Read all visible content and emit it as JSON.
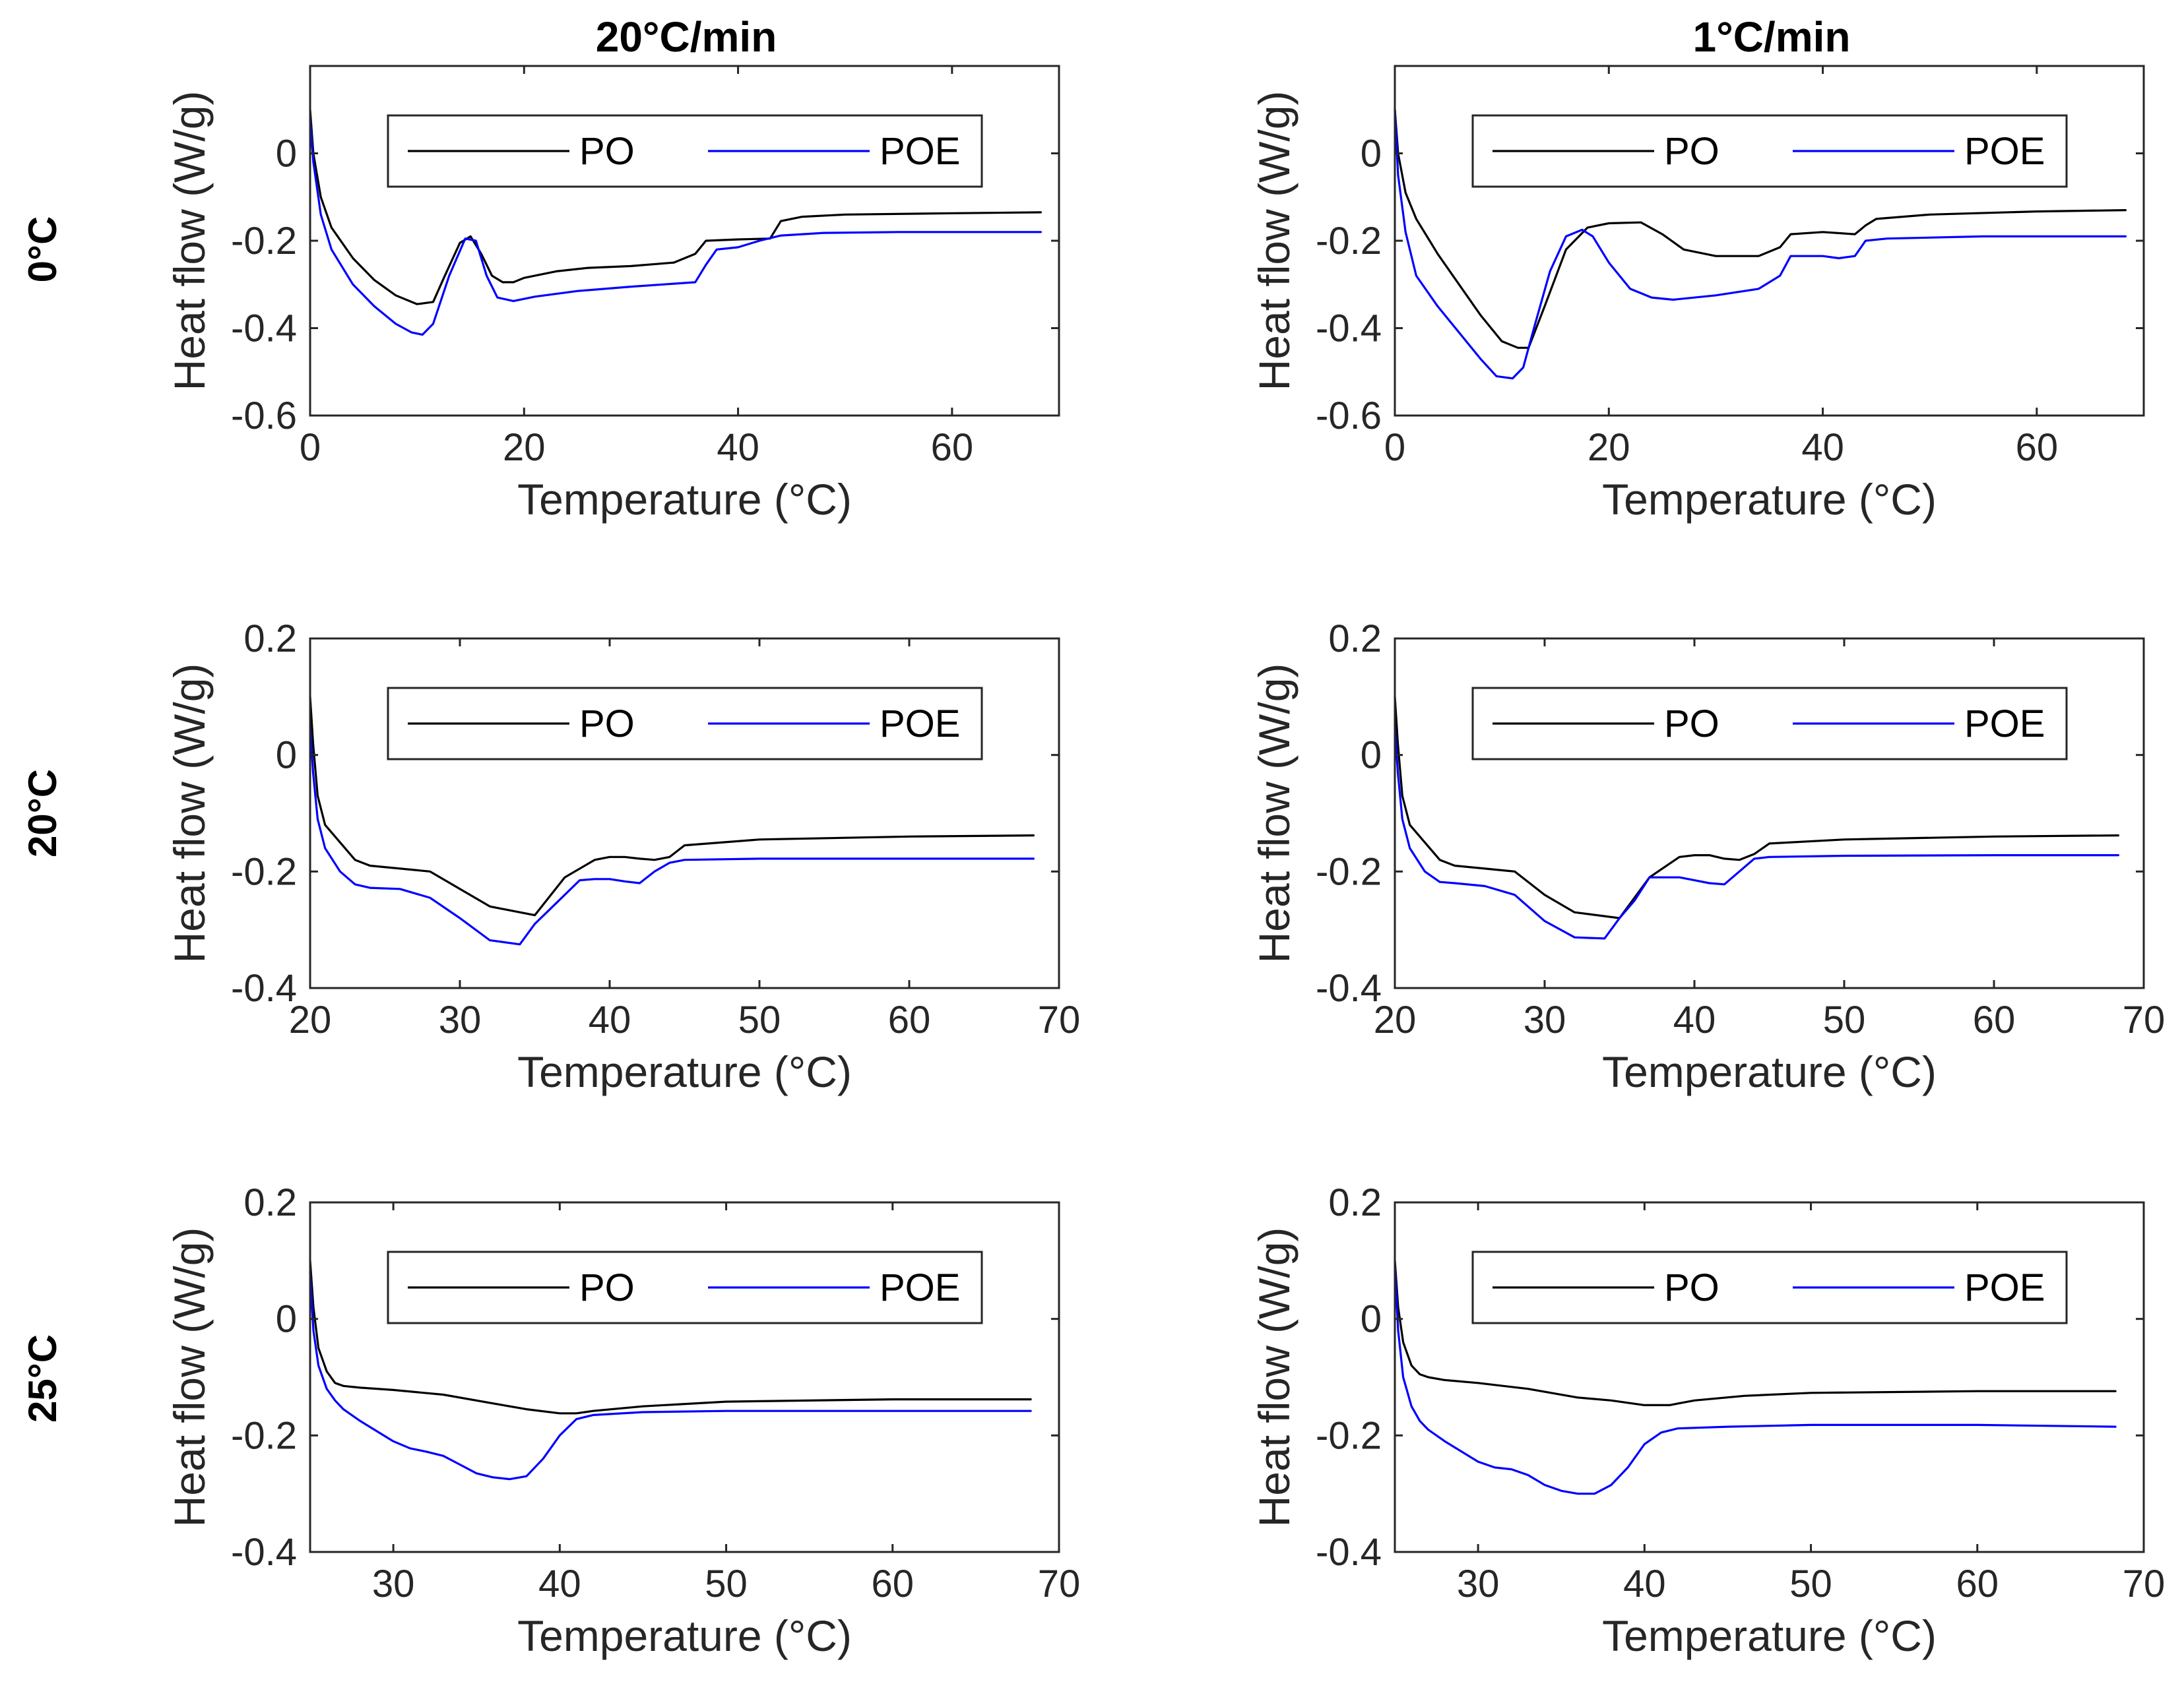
{
  "figure": {
    "column_titles": [
      "20°C/min",
      "1°C/min"
    ],
    "row_titles": [
      "0°C",
      "20°C",
      "25°C"
    ]
  },
  "colors": {
    "PO": "#000000",
    "POE": "#0000ff"
  },
  "chart_data": [
    {
      "type": "line",
      "panel": "0°C / 20°C/min",
      "xlabel": "Temperature (°C)",
      "ylabel": "Heat flow (W/g)",
      "xlim": [
        0,
        70
      ],
      "ylim": [
        -0.6,
        0.2
      ],
      "xticks": [
        0,
        20,
        40,
        60
      ],
      "xtick_labels": [
        "0",
        "20",
        "40",
        "60"
      ],
      "yticks": [
        -0.6,
        -0.4,
        -0.2,
        0
      ],
      "ytick_labels": [
        "-0.6",
        "-0.4",
        "-0.2",
        "0"
      ],
      "legend": [
        "PO",
        "POE"
      ],
      "legend_position": "top",
      "series": [
        {
          "name": "PO",
          "x": [
            0,
            0.3,
            1,
            2,
            4,
            6,
            8,
            10,
            11.5,
            12.5,
            14,
            15,
            16,
            17,
            18,
            19,
            20,
            23,
            26,
            30,
            34,
            36,
            37,
            40,
            43,
            44,
            46,
            50,
            60,
            68.3
          ],
          "y": [
            0.1,
            0,
            -0.1,
            -0.17,
            -0.24,
            -0.29,
            -0.325,
            -0.345,
            -0.34,
            -0.285,
            -0.205,
            -0.19,
            -0.23,
            -0.28,
            -0.295,
            -0.295,
            -0.285,
            -0.27,
            -0.262,
            -0.258,
            -0.25,
            -0.23,
            -0.2,
            -0.197,
            -0.195,
            -0.155,
            -0.145,
            -0.14,
            -0.137,
            -0.135
          ]
        },
        {
          "name": "POE",
          "x": [
            0,
            0.3,
            1,
            2,
            4,
            6,
            8,
            9.5,
            10.5,
            11.5,
            13,
            14.5,
            15.5,
            16.5,
            17.5,
            19,
            21,
            25,
            30,
            36,
            37,
            38,
            40,
            42,
            44,
            48,
            55,
            68.3
          ],
          "y": [
            0.08,
            -0.02,
            -0.14,
            -0.22,
            -0.3,
            -0.35,
            -0.39,
            -0.41,
            -0.415,
            -0.39,
            -0.28,
            -0.195,
            -0.2,
            -0.28,
            -0.33,
            -0.338,
            -0.328,
            -0.315,
            -0.305,
            -0.295,
            -0.255,
            -0.22,
            -0.215,
            -0.2,
            -0.188,
            -0.182,
            -0.18,
            -0.18
          ]
        }
      ]
    },
    {
      "type": "line",
      "panel": "0°C / 1°C/min",
      "xlabel": "Temperature (°C)",
      "ylabel": "Heat flow (W/g)",
      "xlim": [
        0,
        70
      ],
      "ylim": [
        -0.6,
        0.2
      ],
      "xticks": [
        0,
        20,
        40,
        60
      ],
      "xtick_labels": [
        "0",
        "20",
        "40",
        "60"
      ],
      "yticks": [
        -0.6,
        -0.4,
        -0.2,
        0
      ],
      "ytick_labels": [
        "-0.6",
        "-0.4",
        "-0.2",
        "0"
      ],
      "legend": [
        "PO",
        "POE"
      ],
      "legend_position": "top",
      "series": [
        {
          "name": "PO",
          "x": [
            0,
            0.3,
            1,
            2,
            4,
            6,
            8,
            10,
            11.5,
            12.5,
            14,
            16,
            18,
            20,
            23,
            25,
            27,
            30,
            34,
            36,
            37,
            40,
            43,
            44,
            45,
            50,
            60,
            68.3
          ],
          "y": [
            0.1,
            0,
            -0.09,
            -0.15,
            -0.23,
            -0.3,
            -0.37,
            -0.43,
            -0.445,
            -0.445,
            -0.35,
            -0.22,
            -0.17,
            -0.16,
            -0.158,
            -0.185,
            -0.22,
            -0.235,
            -0.235,
            -0.215,
            -0.185,
            -0.18,
            -0.185,
            -0.165,
            -0.15,
            -0.14,
            -0.133,
            -0.13
          ]
        },
        {
          "name": "POE",
          "x": [
            0,
            0.3,
            1,
            2,
            4,
            6,
            8,
            9.5,
            11,
            12,
            13,
            14.5,
            16,
            17.5,
            18.5,
            20,
            22,
            24,
            26,
            30,
            34,
            36,
            37,
            40,
            41.5,
            43,
            44,
            46,
            55,
            68.3
          ],
          "y": [
            0.1,
            -0.05,
            -0.18,
            -0.28,
            -0.35,
            -0.41,
            -0.47,
            -0.51,
            -0.515,
            -0.49,
            -0.4,
            -0.27,
            -0.19,
            -0.175,
            -0.19,
            -0.25,
            -0.31,
            -0.33,
            -0.335,
            -0.325,
            -0.31,
            -0.28,
            -0.235,
            -0.235,
            -0.24,
            -0.235,
            -0.2,
            -0.195,
            -0.19,
            -0.19
          ]
        }
      ]
    },
    {
      "type": "line",
      "panel": "20°C / 20°C/min",
      "xlabel": "Temperature (°C)",
      "ylabel": "Heat flow (W/g)",
      "xlim": [
        20,
        70
      ],
      "ylim": [
        -0.4,
        0.2
      ],
      "xticks": [
        20,
        30,
        40,
        50,
        60,
        70
      ],
      "xtick_labels": [
        "20",
        "30",
        "40",
        "50",
        "60",
        "70"
      ],
      "yticks": [
        -0.4,
        -0.2,
        0,
        0.2
      ],
      "ytick_labels": [
        "-0.4",
        "-0.2",
        "0",
        "0.2"
      ],
      "legend": [
        "PO",
        "POE"
      ],
      "legend_position": "top",
      "series": [
        {
          "name": "PO",
          "x": [
            20,
            20.2,
            20.5,
            21,
            22,
            23,
            24,
            26,
            28,
            30,
            32,
            35,
            37,
            39,
            40,
            41,
            42,
            43,
            44,
            45,
            50,
            60,
            68.3
          ],
          "y": [
            0.1,
            0.02,
            -0.07,
            -0.12,
            -0.15,
            -0.18,
            -0.19,
            -0.195,
            -0.2,
            -0.23,
            -0.26,
            -0.275,
            -0.21,
            -0.18,
            -0.175,
            -0.175,
            -0.178,
            -0.18,
            -0.175,
            -0.155,
            -0.145,
            -0.14,
            -0.138
          ]
        },
        {
          "name": "POE",
          "x": [
            20,
            20.2,
            20.5,
            21,
            22,
            23,
            24,
            26,
            28,
            30,
            32,
            34,
            35,
            36,
            37,
            38,
            39,
            40,
            41,
            42,
            43,
            44,
            45,
            50,
            60,
            68.3
          ],
          "y": [
            0.05,
            -0.03,
            -0.11,
            -0.16,
            -0.2,
            -0.222,
            -0.228,
            -0.23,
            -0.245,
            -0.28,
            -0.318,
            -0.325,
            -0.29,
            -0.265,
            -0.24,
            -0.215,
            -0.213,
            -0.213,
            -0.217,
            -0.22,
            -0.2,
            -0.185,
            -0.18,
            -0.178,
            -0.178,
            -0.178
          ]
        }
      ]
    },
    {
      "type": "line",
      "panel": "20°C / 1°C/min",
      "xlabel": "Temperature (°C)",
      "ylabel": "Heat flow (W/g)",
      "xlim": [
        20,
        70
      ],
      "ylim": [
        -0.4,
        0.2
      ],
      "xticks": [
        20,
        30,
        40,
        50,
        60,
        70
      ],
      "xtick_labels": [
        "20",
        "30",
        "40",
        "50",
        "60",
        "70"
      ],
      "yticks": [
        -0.4,
        -0.2,
        0,
        0.2
      ],
      "ytick_labels": [
        "-0.4",
        "-0.2",
        "0",
        "0.2"
      ],
      "legend": [
        "PO",
        "POE"
      ],
      "legend_position": "top",
      "series": [
        {
          "name": "PO",
          "x": [
            20,
            20.2,
            20.5,
            21,
            22,
            23,
            24,
            26,
            28,
            30,
            32,
            35,
            37,
            39,
            40,
            41,
            42,
            43,
            44,
            45,
            50,
            60,
            68.3
          ],
          "y": [
            0.1,
            0.02,
            -0.07,
            -0.12,
            -0.15,
            -0.18,
            -0.19,
            -0.195,
            -0.2,
            -0.24,
            -0.27,
            -0.28,
            -0.21,
            -0.175,
            -0.172,
            -0.172,
            -0.178,
            -0.18,
            -0.17,
            -0.152,
            -0.145,
            -0.14,
            -0.138
          ]
        },
        {
          "name": "POE",
          "x": [
            20,
            20.2,
            20.5,
            21,
            22,
            23,
            24,
            26,
            28,
            30,
            32,
            34,
            35,
            36,
            37,
            38,
            39,
            40,
            41,
            42,
            43,
            44,
            45,
            50,
            60,
            68.3
          ],
          "y": [
            0.05,
            -0.03,
            -0.11,
            -0.16,
            -0.2,
            -0.218,
            -0.22,
            -0.225,
            -0.24,
            -0.285,
            -0.313,
            -0.315,
            -0.28,
            -0.25,
            -0.21,
            -0.21,
            -0.21,
            -0.215,
            -0.22,
            -0.222,
            -0.2,
            -0.178,
            -0.175,
            -0.173,
            -0.172,
            -0.172
          ]
        }
      ]
    },
    {
      "type": "line",
      "panel": "25°C / 20°C/min",
      "xlabel": "Temperature (°C)",
      "ylabel": "Heat flow (W/g)",
      "xlim": [
        25,
        70
      ],
      "ylim": [
        -0.4,
        0.2
      ],
      "xticks": [
        30,
        40,
        50,
        60,
        70
      ],
      "xtick_labels": [
        "30",
        "40",
        "50",
        "60",
        "70"
      ],
      "yticks": [
        -0.4,
        -0.2,
        0,
        0.2
      ],
      "ytick_labels": [
        "-0.4",
        "-0.2",
        "0",
        "0.2"
      ],
      "legend": [
        "PO",
        "POE"
      ],
      "legend_position": "top",
      "series": [
        {
          "name": "PO",
          "x": [
            25,
            25.2,
            25.5,
            26,
            26.5,
            27,
            28,
            30,
            33,
            36,
            38,
            40,
            41,
            42,
            45,
            50,
            60,
            68.3
          ],
          "y": [
            0.1,
            0.02,
            -0.05,
            -0.09,
            -0.11,
            -0.115,
            -0.118,
            -0.122,
            -0.13,
            -0.145,
            -0.155,
            -0.162,
            -0.162,
            -0.158,
            -0.15,
            -0.142,
            -0.138,
            -0.138
          ]
        },
        {
          "name": "POE",
          "x": [
            25,
            25.2,
            25.5,
            26,
            26.5,
            27,
            28,
            30,
            31,
            32,
            33,
            34,
            35,
            36,
            37,
            38,
            39,
            40,
            41,
            42,
            45,
            50,
            60,
            68.3
          ],
          "y": [
            0.08,
            -0.02,
            -0.08,
            -0.12,
            -0.14,
            -0.155,
            -0.175,
            -0.21,
            -0.222,
            -0.228,
            -0.235,
            -0.25,
            -0.265,
            -0.272,
            -0.275,
            -0.27,
            -0.24,
            -0.2,
            -0.172,
            -0.165,
            -0.16,
            -0.158,
            -0.158,
            -0.158
          ]
        }
      ]
    },
    {
      "type": "line",
      "panel": "25°C / 1°C/min",
      "xlabel": "Temperature (°C)",
      "ylabel": "Heat flow (W/g)",
      "xlim": [
        25,
        70
      ],
      "ylim": [
        -0.4,
        0.2
      ],
      "xticks": [
        30,
        40,
        50,
        60,
        70
      ],
      "xtick_labels": [
        "30",
        "40",
        "50",
        "60",
        "70"
      ],
      "yticks": [
        -0.4,
        -0.2,
        0,
        0.2
      ],
      "ytick_labels": [
        "-0.4",
        "-0.2",
        "0",
        "0.2"
      ],
      "legend": [
        "PO",
        "POE"
      ],
      "legend_position": "top",
      "series": [
        {
          "name": "PO",
          "x": [
            25,
            25.2,
            25.5,
            26,
            26.5,
            27,
            28,
            30,
            33,
            36,
            38,
            40,
            41.5,
            43,
            46,
            50,
            60,
            68.3
          ],
          "y": [
            0.1,
            0.02,
            -0.04,
            -0.08,
            -0.095,
            -0.1,
            -0.105,
            -0.11,
            -0.12,
            -0.135,
            -0.14,
            -0.148,
            -0.148,
            -0.14,
            -0.132,
            -0.127,
            -0.124,
            -0.124
          ]
        },
        {
          "name": "POE",
          "x": [
            25,
            25.2,
            25.5,
            26,
            26.5,
            27,
            28,
            30,
            31,
            32,
            33,
            34,
            35,
            36,
            37,
            38,
            39,
            40,
            41,
            42,
            45,
            50,
            60,
            68.3
          ],
          "y": [
            0.09,
            -0.02,
            -0.1,
            -0.15,
            -0.175,
            -0.19,
            -0.21,
            -0.245,
            -0.255,
            -0.258,
            -0.268,
            -0.285,
            -0.295,
            -0.3,
            -0.3,
            -0.285,
            -0.255,
            -0.215,
            -0.195,
            -0.188,
            -0.185,
            -0.182,
            -0.182,
            -0.185
          ]
        }
      ]
    }
  ]
}
